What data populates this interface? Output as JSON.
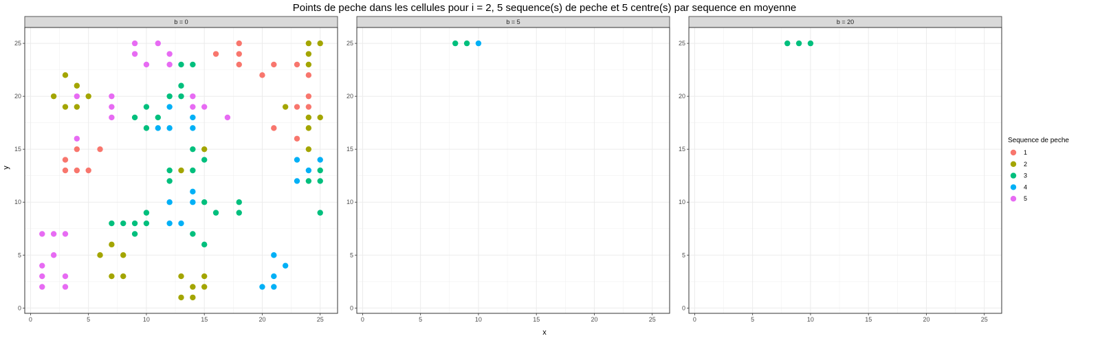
{
  "chart_data": {
    "type": "scatter",
    "title": "Points de peche dans les cellules pour i = 2, 5 sequence(s) de peche et 5 centre(s) par sequence en moyenne",
    "xlabel": "x",
    "ylabel": "y",
    "xlim": [
      -0.5,
      26.5
    ],
    "ylim": [
      -0.5,
      26.5
    ],
    "x_ticks": [
      0,
      5,
      10,
      15,
      20,
      25
    ],
    "y_ticks": [
      0,
      5,
      10,
      15,
      20,
      25
    ],
    "grid": true,
    "legend": {
      "title": "Sequence de peche",
      "placement": "right",
      "entries": [
        {
          "label": "1",
          "color": "#F8766D"
        },
        {
          "label": "2",
          "color": "#A3A500"
        },
        {
          "label": "3",
          "color": "#00BF7D"
        },
        {
          "label": "4",
          "color": "#00B0F6"
        },
        {
          "label": "5",
          "color": "#E76BF3"
        }
      ]
    },
    "panels": [
      {
        "label": "b = 0",
        "series": [
          {
            "name": "1",
            "points": [
              [
                3,
                13
              ],
              [
                3,
                14
              ],
              [
                4,
                13
              ],
              [
                4,
                15
              ],
              [
                5,
                13
              ],
              [
                6,
                15
              ],
              [
                16,
                24
              ],
              [
                18,
                25
              ],
              [
                18,
                24
              ],
              [
                18,
                23
              ],
              [
                20,
                22
              ],
              [
                21,
                23
              ],
              [
                21,
                17
              ],
              [
                23,
                23
              ],
              [
                23,
                19
              ],
              [
                23,
                16
              ],
              [
                24,
                22
              ],
              [
                24,
                20
              ],
              [
                24,
                19
              ]
            ]
          },
          {
            "name": "2",
            "points": [
              [
                2,
                20
              ],
              [
                3,
                22
              ],
              [
                3,
                19
              ],
              [
                4,
                21
              ],
              [
                4,
                19
              ],
              [
                5,
                20
              ],
              [
                22,
                19
              ],
              [
                24,
                25
              ],
              [
                24,
                24
              ],
              [
                24,
                23
              ],
              [
                24,
                18
              ],
              [
                24,
                17
              ],
              [
                24,
                15
              ],
              [
                25,
                25
              ],
              [
                25,
                18
              ],
              [
                15,
                15
              ],
              [
                13,
                13
              ],
              [
                6,
                5
              ],
              [
                7,
                6
              ],
              [
                7,
                3
              ],
              [
                8,
                5
              ],
              [
                8,
                3
              ],
              [
                13,
                3
              ],
              [
                13,
                1
              ],
              [
                14,
                2
              ],
              [
                14,
                1
              ],
              [
                15,
                3
              ],
              [
                15,
                2
              ]
            ]
          },
          {
            "name": "3",
            "points": [
              [
                9,
                18
              ],
              [
                10,
                19
              ],
              [
                10,
                17
              ],
              [
                11,
                18
              ],
              [
                12,
                20
              ],
              [
                13,
                23
              ],
              [
                13,
                21
              ],
              [
                13,
                20
              ],
              [
                14,
                23
              ],
              [
                14,
                15
              ],
              [
                14,
                13
              ],
              [
                15,
                14
              ],
              [
                12,
                13
              ],
              [
                12,
                12
              ],
              [
                14,
                7
              ],
              [
                15,
                10
              ],
              [
                15,
                6
              ],
              [
                16,
                9
              ],
              [
                18,
                10
              ],
              [
                18,
                9
              ],
              [
                7,
                8
              ],
              [
                8,
                8
              ],
              [
                9,
                8
              ],
              [
                9,
                7
              ],
              [
                10,
                9
              ],
              [
                10,
                8
              ],
              [
                24,
                12
              ],
              [
                25,
                13
              ],
              [
                25,
                12
              ],
              [
                25,
                9
              ]
            ]
          },
          {
            "name": "4",
            "points": [
              [
                11,
                17
              ],
              [
                12,
                19
              ],
              [
                12,
                17
              ],
              [
                14,
                18
              ],
              [
                14,
                17
              ],
              [
                12,
                10
              ],
              [
                12,
                8
              ],
              [
                13,
                8
              ],
              [
                14,
                11
              ],
              [
                14,
                10
              ],
              [
                23,
                14
              ],
              [
                23,
                12
              ],
              [
                24,
                13
              ],
              [
                25,
                14
              ],
              [
                20,
                2
              ],
              [
                21,
                5
              ],
              [
                21,
                3
              ],
              [
                21,
                2
              ],
              [
                22,
                4
              ]
            ]
          },
          {
            "name": "5",
            "points": [
              [
                9,
                25
              ],
              [
                9,
                24
              ],
              [
                10,
                23
              ],
              [
                11,
                25
              ],
              [
                12,
                24
              ],
              [
                12,
                23
              ],
              [
                4,
                20
              ],
              [
                4,
                16
              ],
              [
                7,
                20
              ],
              [
                7,
                19
              ],
              [
                7,
                18
              ],
              [
                14,
                20
              ],
              [
                14,
                19
              ],
              [
                15,
                19
              ],
              [
                17,
                18
              ],
              [
                1,
                7
              ],
              [
                2,
                7
              ],
              [
                3,
                7
              ],
              [
                2,
                5
              ],
              [
                1,
                4
              ],
              [
                1,
                3
              ],
              [
                1,
                2
              ],
              [
                3,
                3
              ],
              [
                3,
                2
              ]
            ]
          }
        ]
      },
      {
        "label": "b = 5",
        "series": [
          {
            "name": "3",
            "points": [
              [
                8,
                25
              ],
              [
                9,
                25
              ]
            ]
          },
          {
            "name": "4",
            "points": [
              [
                10,
                25
              ]
            ]
          }
        ]
      },
      {
        "label": "b = 20",
        "series": [
          {
            "name": "3",
            "points": [
              [
                8,
                25
              ],
              [
                9,
                25
              ],
              [
                10,
                25
              ]
            ]
          }
        ]
      }
    ]
  }
}
